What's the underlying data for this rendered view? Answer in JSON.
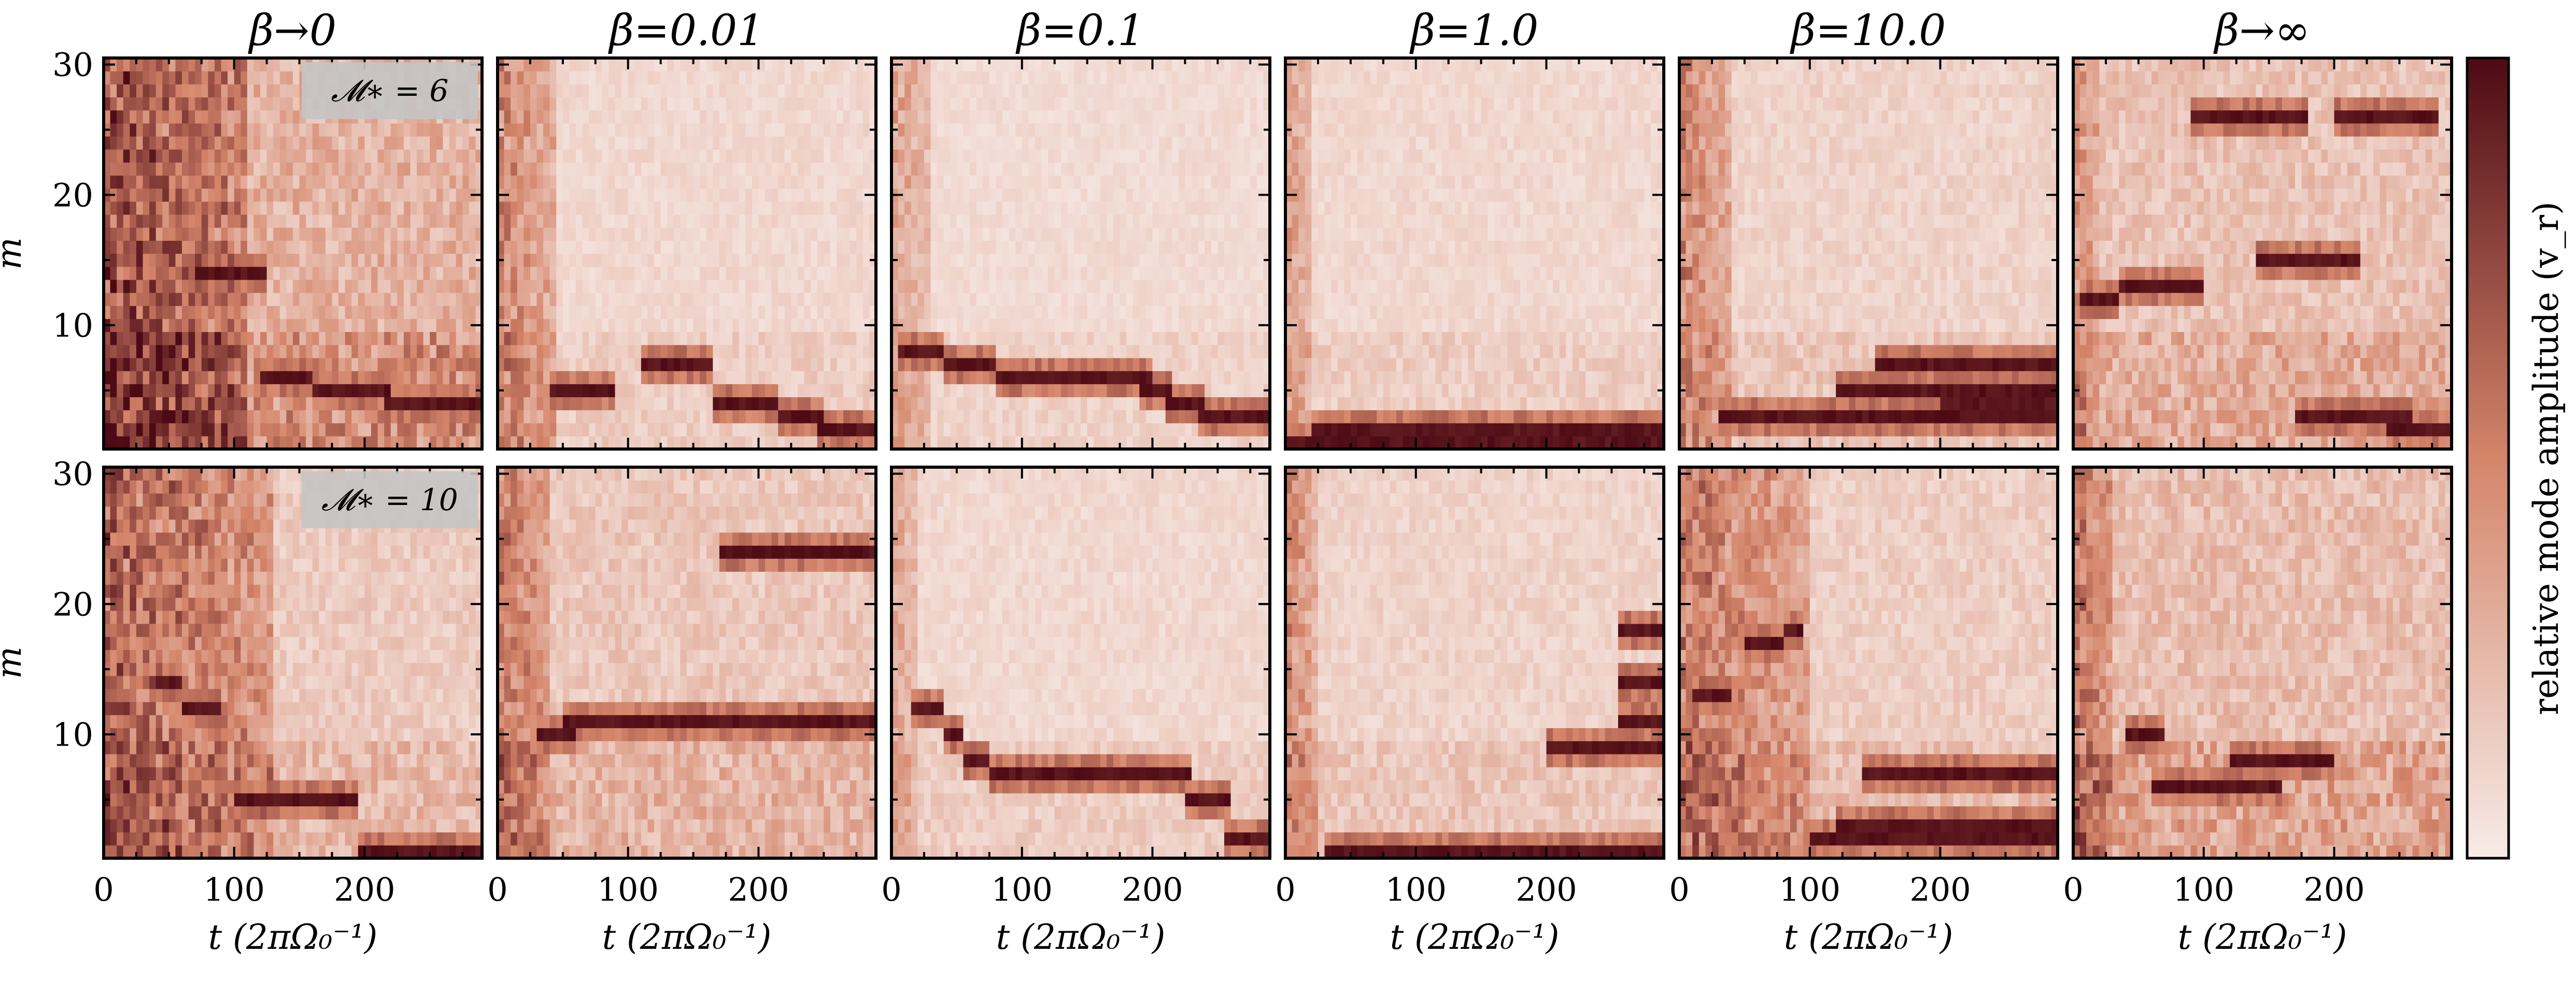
{
  "figure": {
    "colorbar_label": "relative mode amplitude (v_r)",
    "xlabel": "t (2πΩ₀⁻¹)",
    "ylabel": "m",
    "colormap": {
      "low": "#f7ebe7",
      "mid": "#d4856a",
      "high": "#4d0a14"
    }
  },
  "chart_data": [
    {
      "type": "heatmap",
      "title": "β→0",
      "annotation": "𝓜∗ = 6",
      "row": 0,
      "col": 0,
      "xlim": [
        0,
        290
      ],
      "ylim": [
        1,
        30
      ],
      "xticks": [
        0,
        100,
        200
      ],
      "yticks": [
        10,
        20,
        30
      ],
      "features": [
        {
          "m": 14,
          "t_start": 70,
          "t_end": 125
        },
        {
          "m": 6,
          "t_start": 120,
          "t_end": 160
        },
        {
          "m": 5,
          "t_start": 160,
          "t_end": 220
        },
        {
          "m": 4,
          "t_start": 215,
          "t_end": 290
        }
      ],
      "background_intensity": 0.35,
      "early_intensity": 0.55,
      "early_until": 110
    },
    {
      "type": "heatmap",
      "title": "β=0.01",
      "annotation": "",
      "row": 0,
      "col": 1,
      "xlim": [
        0,
        290
      ],
      "ylim": [
        1,
        30
      ],
      "xticks": [
        0,
        100,
        200
      ],
      "yticks": [
        10,
        20,
        30
      ],
      "features": [
        {
          "m": 7,
          "t_start": 110,
          "t_end": 165
        },
        {
          "m": 4,
          "t_start": 165,
          "t_end": 215
        },
        {
          "m": 3,
          "t_start": 215,
          "t_end": 250
        },
        {
          "m": 2,
          "t_start": 245,
          "t_end": 290
        },
        {
          "m": 5,
          "t_start": 40,
          "t_end": 90
        }
      ],
      "background_intensity": 0.12,
      "early_intensity": 0.5,
      "early_until": 45
    },
    {
      "type": "heatmap",
      "title": "β=0.1",
      "annotation": "",
      "row": 0,
      "col": 2,
      "xlim": [
        0,
        290
      ],
      "ylim": [
        1,
        30
      ],
      "xticks": [
        0,
        100,
        200
      ],
      "yticks": [
        10,
        20,
        30
      ],
      "features": [
        {
          "m": 8,
          "t_start": 5,
          "t_end": 40
        },
        {
          "m": 7,
          "t_start": 40,
          "t_end": 80
        },
        {
          "m": 6,
          "t_start": 80,
          "t_end": 200
        },
        {
          "m": 5,
          "t_start": 190,
          "t_end": 215
        },
        {
          "m": 4,
          "t_start": 210,
          "t_end": 240
        },
        {
          "m": 3,
          "t_start": 235,
          "t_end": 290
        }
      ],
      "background_intensity": 0.1,
      "early_intensity": 0.35,
      "early_until": 30
    },
    {
      "type": "heatmap",
      "title": "β=1.0",
      "annotation": "",
      "row": 0,
      "col": 3,
      "xlim": [
        0,
        290
      ],
      "ylim": [
        1,
        30
      ],
      "xticks": [
        0,
        100,
        200
      ],
      "yticks": [
        10,
        20,
        30
      ],
      "features": [
        {
          "m": 1,
          "t_start": 0,
          "t_end": 290
        },
        {
          "m": 2,
          "t_start": 20,
          "t_end": 290
        }
      ],
      "background_intensity": 0.12,
      "early_intensity": 0.35,
      "early_until": 20
    },
    {
      "type": "heatmap",
      "title": "β=10.0",
      "annotation": "",
      "row": 0,
      "col": 4,
      "xlim": [
        0,
        290
      ],
      "ylim": [
        1,
        30
      ],
      "xticks": [
        0,
        100,
        200
      ],
      "yticks": [
        10,
        20,
        30
      ],
      "features": [
        {
          "m": 3,
          "t_start": 30,
          "t_end": 290
        },
        {
          "m": 4,
          "t_start": 200,
          "t_end": 290
        },
        {
          "m": 5,
          "t_start": 120,
          "t_end": 290
        },
        {
          "m": 7,
          "t_start": 150,
          "t_end": 290
        }
      ],
      "background_intensity": 0.15,
      "early_intensity": 0.45,
      "early_until": 40
    },
    {
      "type": "heatmap",
      "title": "β→∞",
      "annotation": "",
      "row": 0,
      "col": 5,
      "xlim": [
        0,
        290
      ],
      "ylim": [
        1,
        30
      ],
      "xticks": [
        0,
        100,
        200
      ],
      "yticks": [
        10,
        20,
        30
      ],
      "features": [
        {
          "m": 12,
          "t_start": 5,
          "t_end": 35
        },
        {
          "m": 13,
          "t_start": 35,
          "t_end": 100
        },
        {
          "m": 15,
          "t_start": 140,
          "t_end": 220
        },
        {
          "m": 26,
          "t_start": 90,
          "t_end": 180
        },
        {
          "m": 26,
          "t_start": 200,
          "t_end": 280
        },
        {
          "m": 3,
          "t_start": 170,
          "t_end": 260
        },
        {
          "m": 2,
          "t_start": 240,
          "t_end": 290
        }
      ],
      "background_intensity": 0.25,
      "early_intensity": 0.3,
      "early_until": 20
    },
    {
      "type": "heatmap",
      "title": "",
      "annotation": "𝓜∗ = 10",
      "row": 1,
      "col": 0,
      "xlim": [
        0,
        290
      ],
      "ylim": [
        1,
        30
      ],
      "xticks": [
        0,
        100,
        200
      ],
      "yticks": [
        10,
        20,
        30
      ],
      "features": [
        {
          "m": 14,
          "t_start": 40,
          "t_end": 60
        },
        {
          "m": 12,
          "t_start": 60,
          "t_end": 90
        },
        {
          "m": 5,
          "t_start": 100,
          "t_end": 195
        },
        {
          "m": 1,
          "t_start": 195,
          "t_end": 290
        }
      ],
      "background_intensity": 0.2,
      "early_intensity": 0.6,
      "early_until": 130
    },
    {
      "type": "heatmap",
      "title": "",
      "annotation": "",
      "row": 1,
      "col": 1,
      "xlim": [
        0,
        290
      ],
      "ylim": [
        1,
        30
      ],
      "xticks": [
        0,
        100,
        200
      ],
      "yticks": [
        10,
        20,
        30
      ],
      "features": [
        {
          "m": 10,
          "t_start": 30,
          "t_end": 60
        },
        {
          "m": 11,
          "t_start": 50,
          "t_end": 290
        },
        {
          "m": 24,
          "t_start": 170,
          "t_end": 290
        }
      ],
      "background_intensity": 0.22,
      "early_intensity": 0.45,
      "early_until": 40
    },
    {
      "type": "heatmap",
      "title": "",
      "annotation": "",
      "row": 1,
      "col": 2,
      "xlim": [
        0,
        290
      ],
      "ylim": [
        1,
        30
      ],
      "xticks": [
        0,
        100,
        200
      ],
      "yticks": [
        10,
        20,
        30
      ],
      "features": [
        {
          "m": 12,
          "t_start": 15,
          "t_end": 40
        },
        {
          "m": 10,
          "t_start": 40,
          "t_end": 55
        },
        {
          "m": 8,
          "t_start": 55,
          "t_end": 75
        },
        {
          "m": 7,
          "t_start": 75,
          "t_end": 230
        },
        {
          "m": 5,
          "t_start": 225,
          "t_end": 260
        },
        {
          "m": 2,
          "t_start": 255,
          "t_end": 290
        }
      ],
      "background_intensity": 0.12,
      "early_intensity": 0.3,
      "early_until": 20
    },
    {
      "type": "heatmap",
      "title": "",
      "annotation": "",
      "row": 1,
      "col": 3,
      "xlim": [
        0,
        290
      ],
      "ylim": [
        1,
        30
      ],
      "xticks": [
        0,
        100,
        200
      ],
      "yticks": [
        10,
        20,
        30
      ],
      "features": [
        {
          "m": 9,
          "t_start": 200,
          "t_end": 290
        },
        {
          "m": 1,
          "t_start": 30,
          "t_end": 290
        },
        {
          "m": 14,
          "t_start": 255,
          "t_end": 290
        },
        {
          "m": 11,
          "t_start": 255,
          "t_end": 290
        },
        {
          "m": 18,
          "t_start": 255,
          "t_end": 290
        }
      ],
      "background_intensity": 0.15,
      "early_intensity": 0.45,
      "early_until": 25
    },
    {
      "type": "heatmap",
      "title": "",
      "annotation": "",
      "row": 1,
      "col": 4,
      "xlim": [
        0,
        290
      ],
      "ylim": [
        1,
        30
      ],
      "xticks": [
        0,
        100,
        200
      ],
      "yticks": [
        10,
        20,
        30
      ],
      "features": [
        {
          "m": 13,
          "t_start": 10,
          "t_end": 40
        },
        {
          "m": 17,
          "t_start": 50,
          "t_end": 80
        },
        {
          "m": 18,
          "t_start": 80,
          "t_end": 95
        },
        {
          "m": 2,
          "t_start": 100,
          "t_end": 290
        },
        {
          "m": 3,
          "t_start": 120,
          "t_end": 290
        },
        {
          "m": 7,
          "t_start": 140,
          "t_end": 290
        }
      ],
      "background_intensity": 0.18,
      "early_intensity": 0.5,
      "early_until": 100
    },
    {
      "type": "heatmap",
      "title": "",
      "annotation": "",
      "row": 1,
      "col": 5,
      "xlim": [
        0,
        290
      ],
      "ylim": [
        1,
        30
      ],
      "xticks": [
        0,
        100,
        200
      ],
      "yticks": [
        10,
        20,
        30
      ],
      "features": [
        {
          "m": 10,
          "t_start": 40,
          "t_end": 70
        },
        {
          "m": 6,
          "t_start": 60,
          "t_end": 160
        },
        {
          "m": 8,
          "t_start": 120,
          "t_end": 200
        }
      ],
      "background_intensity": 0.28,
      "early_intensity": 0.4,
      "early_until": 30
    }
  ]
}
